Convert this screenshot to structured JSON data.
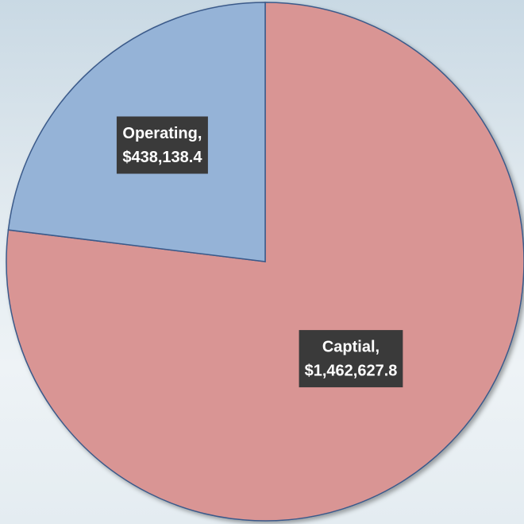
{
  "chart_data": {
    "type": "pie",
    "categories": [
      "Captial,",
      "Operating,"
    ],
    "values": [
      1462627.8,
      438138.4
    ],
    "value_labels": [
      "$1,462,627.8",
      "$438,138.4"
    ],
    "colors": [
      "#d99594",
      "#95b3d7"
    ]
  }
}
